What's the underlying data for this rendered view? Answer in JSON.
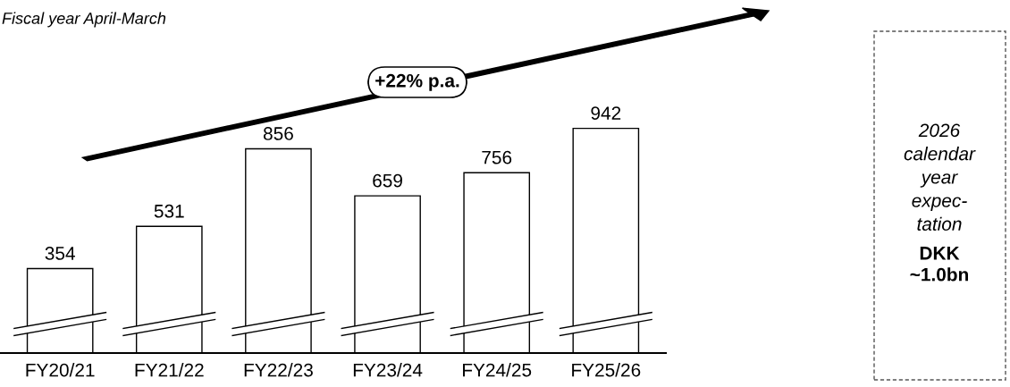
{
  "chart_data": {
    "type": "bar",
    "categories": [
      "FY20/21",
      "FY21/22",
      "FY22/23",
      "FY23/24",
      "FY24/25",
      "FY25/26"
    ],
    "values": [
      354,
      531,
      856,
      659,
      756,
      942
    ],
    "color": "#ffffff",
    "tick_labels": "x",
    "data_labels": true,
    "grid": false,
    "legend": false,
    "annotations": [
      "Fiscal year April-March",
      "+22% p.a.",
      "2026\ncalendar\nyear\nexpec-\ntation",
      "DKK\n~1.0bn"
    ]
  }
}
